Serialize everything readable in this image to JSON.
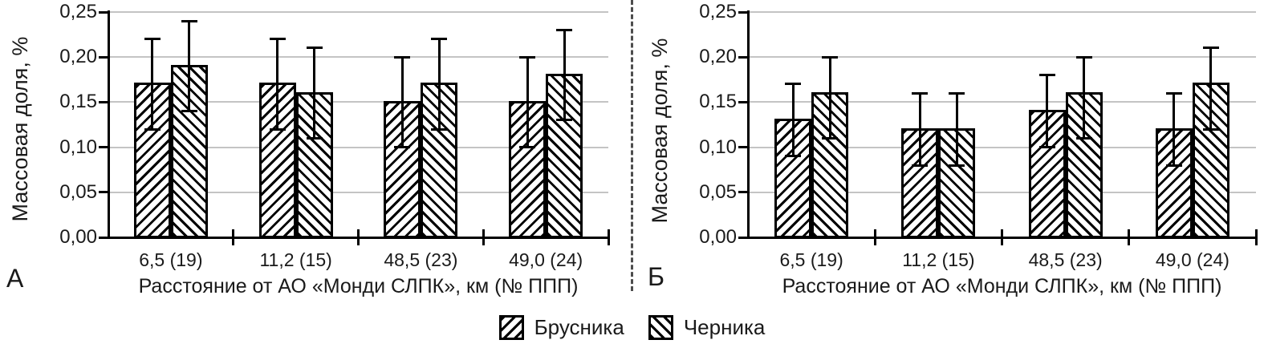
{
  "colors": {
    "bar_fill": "#ffffff",
    "hatch": "#000000",
    "gridline": "#c4c4c4",
    "axis": "#000000",
    "divider": "#4d4d4d",
    "text": "#1a1a1a"
  },
  "legend": {
    "position": "bottom-center",
    "items": [
      {
        "label": "Брусника",
        "hatch": "/"
      },
      {
        "label": "Черника",
        "hatch": "\\"
      }
    ]
  },
  "chart_data": [
    {
      "type": "bar",
      "panel_label": "А",
      "ylabel": "Массовая доля, %",
      "xlabel": "Расстояние от АО «Монди СЛПК», км (№ ППП)",
      "categories": [
        "6,5 (19)",
        "11,2 (15)",
        "48,5 (23)",
        "49,0 (24)"
      ],
      "yticks": [
        "0,00",
        "0,05",
        "0,10",
        "0,15",
        "0,20",
        "0,25"
      ],
      "ylim": [
        0,
        0.25
      ],
      "grid": true,
      "error_bars": true,
      "series": [
        {
          "name": "Брусника",
          "hatch": "/",
          "values": [
            0.17,
            0.17,
            0.15,
            0.15
          ],
          "err_low": [
            0.12,
            0.12,
            0.1,
            0.1
          ],
          "err_high": [
            0.22,
            0.22,
            0.2,
            0.2
          ]
        },
        {
          "name": "Черника",
          "hatch": "\\",
          "values": [
            0.19,
            0.16,
            0.17,
            0.18
          ],
          "err_low": [
            0.14,
            0.11,
            0.12,
            0.13
          ],
          "err_high": [
            0.24,
            0.21,
            0.22,
            0.23
          ]
        }
      ]
    },
    {
      "type": "bar",
      "panel_label": "Б",
      "ylabel": "Массовая доля, %",
      "xlabel": "Расстояние от АО «Монди СЛПК», км (№ ППП)",
      "categories": [
        "6,5 (19)",
        "11,2 (15)",
        "48,5 (23)",
        "49,0 (24)"
      ],
      "yticks": [
        "0,00",
        "0,05",
        "0,10",
        "0,15",
        "0,20",
        "0,25"
      ],
      "ylim": [
        0,
        0.25
      ],
      "grid": true,
      "error_bars": true,
      "series": [
        {
          "name": "Брусника",
          "hatch": "/",
          "values": [
            0.13,
            0.12,
            0.14,
            0.12
          ],
          "err_low": [
            0.09,
            0.08,
            0.1,
            0.08
          ],
          "err_high": [
            0.17,
            0.16,
            0.18,
            0.16
          ]
        },
        {
          "name": "Черника",
          "hatch": "\\",
          "values": [
            0.16,
            0.12,
            0.16,
            0.17
          ],
          "err_low": [
            0.11,
            0.08,
            0.11,
            0.12
          ],
          "err_high": [
            0.2,
            0.16,
            0.2,
            0.21
          ]
        }
      ]
    }
  ]
}
